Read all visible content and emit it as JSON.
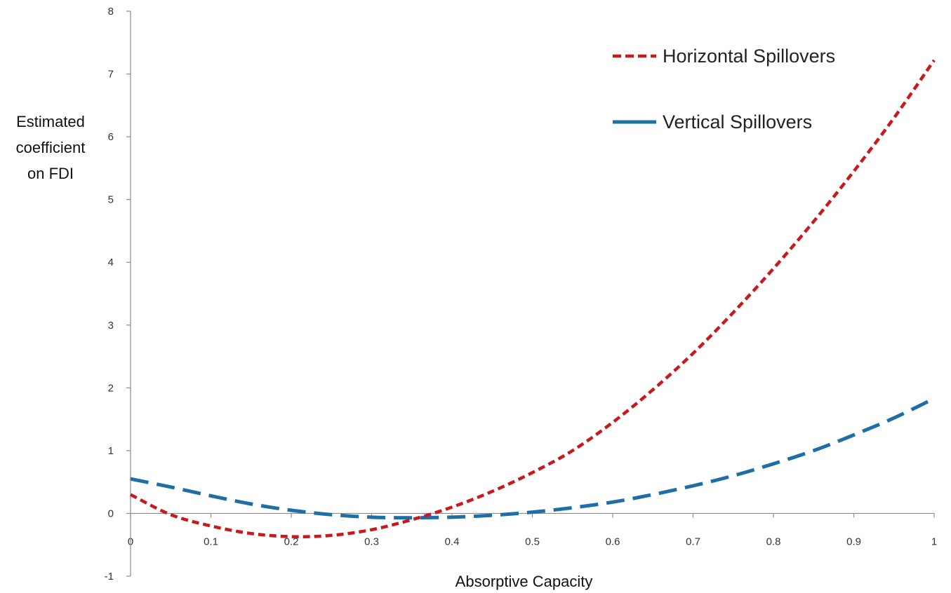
{
  "chart_data": {
    "type": "line",
    "title": "",
    "xlabel": "Absorptive Capacity",
    "ylabel_lines": [
      "Estimated",
      "coefficient",
      "on FDI"
    ],
    "xlim": [
      0,
      1
    ],
    "ylim": [
      -1,
      8
    ],
    "x_ticks": [
      0,
      0.1,
      0.2,
      0.3,
      0.4,
      0.5,
      0.6,
      0.7,
      0.8,
      0.9,
      1
    ],
    "y_ticks": [
      -1,
      0,
      1,
      2,
      3,
      4,
      5,
      6,
      7,
      8
    ],
    "grid": false,
    "legend_position": "top-right",
    "series": [
      {
        "name": "Horizontal Spillovers",
        "color": "#c8191e",
        "style": "short-dash",
        "x": [
          0,
          0.05,
          0.1,
          0.15,
          0.2,
          0.25,
          0.3,
          0.35,
          0.4,
          0.45,
          0.5,
          0.55,
          0.6,
          0.65,
          0.7,
          0.75,
          0.8,
          0.85,
          0.9,
          0.95,
          1
        ],
        "values": [
          0.3,
          -0.02,
          -0.2,
          -0.32,
          -0.37,
          -0.35,
          -0.26,
          -0.1,
          0.1,
          0.35,
          0.65,
          1.0,
          1.45,
          1.97,
          2.55,
          3.2,
          3.9,
          4.65,
          5.45,
          6.3,
          7.22
        ]
      },
      {
        "name": "Vertical Spillovers",
        "color": "#1f6fa6",
        "style": "long-dash",
        "x": [
          0,
          0.05,
          0.1,
          0.15,
          0.2,
          0.25,
          0.3,
          0.35,
          0.4,
          0.45,
          0.5,
          0.55,
          0.6,
          0.65,
          0.7,
          0.75,
          0.8,
          0.85,
          0.9,
          0.95,
          1
        ],
        "values": [
          0.55,
          0.42,
          0.28,
          0.15,
          0.05,
          -0.02,
          -0.06,
          -0.07,
          -0.06,
          -0.03,
          0.02,
          0.09,
          0.18,
          0.3,
          0.44,
          0.6,
          0.79,
          1.0,
          1.25,
          1.52,
          1.83
        ]
      }
    ]
  }
}
